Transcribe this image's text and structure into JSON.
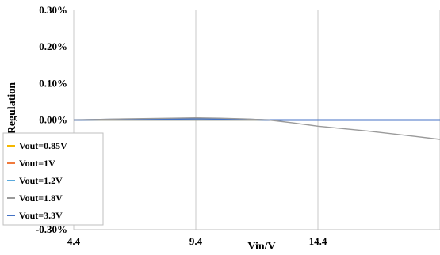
{
  "chart_data": {
    "type": "line",
    "xlabel": "Vin/V",
    "ylabel": "Line Regulation",
    "x_ticks": [
      "4.4",
      "9.4",
      "14.4"
    ],
    "y_ticks": [
      "0.30%",
      "0.20%",
      "0.10%",
      "0.00%",
      "-0.10%",
      "-0.20%",
      "-0.30%"
    ],
    "xlim": [
      4.4,
      19.4
    ],
    "ylim": [
      -0.3,
      0.3
    ],
    "grid": "vertical",
    "legend_position": "bottom-left",
    "series": [
      {
        "name": "Vout=0.85V",
        "color": "#F5B800",
        "x": [
          4.4,
          9.4,
          12.3,
          14.4,
          19.4
        ],
        "y": [
          0.0,
          0.0,
          0.0,
          0.0,
          0.0
        ]
      },
      {
        "name": "Vout=1V",
        "color": "#F07A3C",
        "x": [
          4.4,
          9.4,
          12.3,
          14.4,
          19.4
        ],
        "y": [
          0.0,
          0.0,
          0.0,
          0.0,
          0.0
        ]
      },
      {
        "name": "Vout=1.2V",
        "color": "#5AA9DC",
        "x": [
          4.4,
          9.4,
          12.3,
          14.4,
          19.4
        ],
        "y": [
          0.0,
          0.0,
          0.0,
          0.0,
          0.0
        ]
      },
      {
        "name": "Vout=1.8V",
        "color": "#9A9A9A",
        "x": [
          4.4,
          6.4,
          8.4,
          9.4,
          10.4,
          11.4,
          12.4,
          13.4,
          14.4,
          16.4,
          18.4,
          19.4
        ],
        "y": [
          0.0,
          0.003,
          0.005,
          0.006,
          0.005,
          0.003,
          0.0,
          -0.008,
          -0.017,
          -0.03,
          -0.045,
          -0.053
        ]
      },
      {
        "name": "Vout=3.3V",
        "color": "#4472C4",
        "x": [
          4.4,
          6.4,
          8.4,
          9.4,
          10.4,
          11.4,
          12.4,
          14.4,
          16.4,
          19.4
        ],
        "y": [
          0.0,
          0.002,
          0.003,
          0.004,
          0.003,
          0.002,
          0.0,
          0.0,
          0.0,
          0.0
        ]
      }
    ]
  }
}
